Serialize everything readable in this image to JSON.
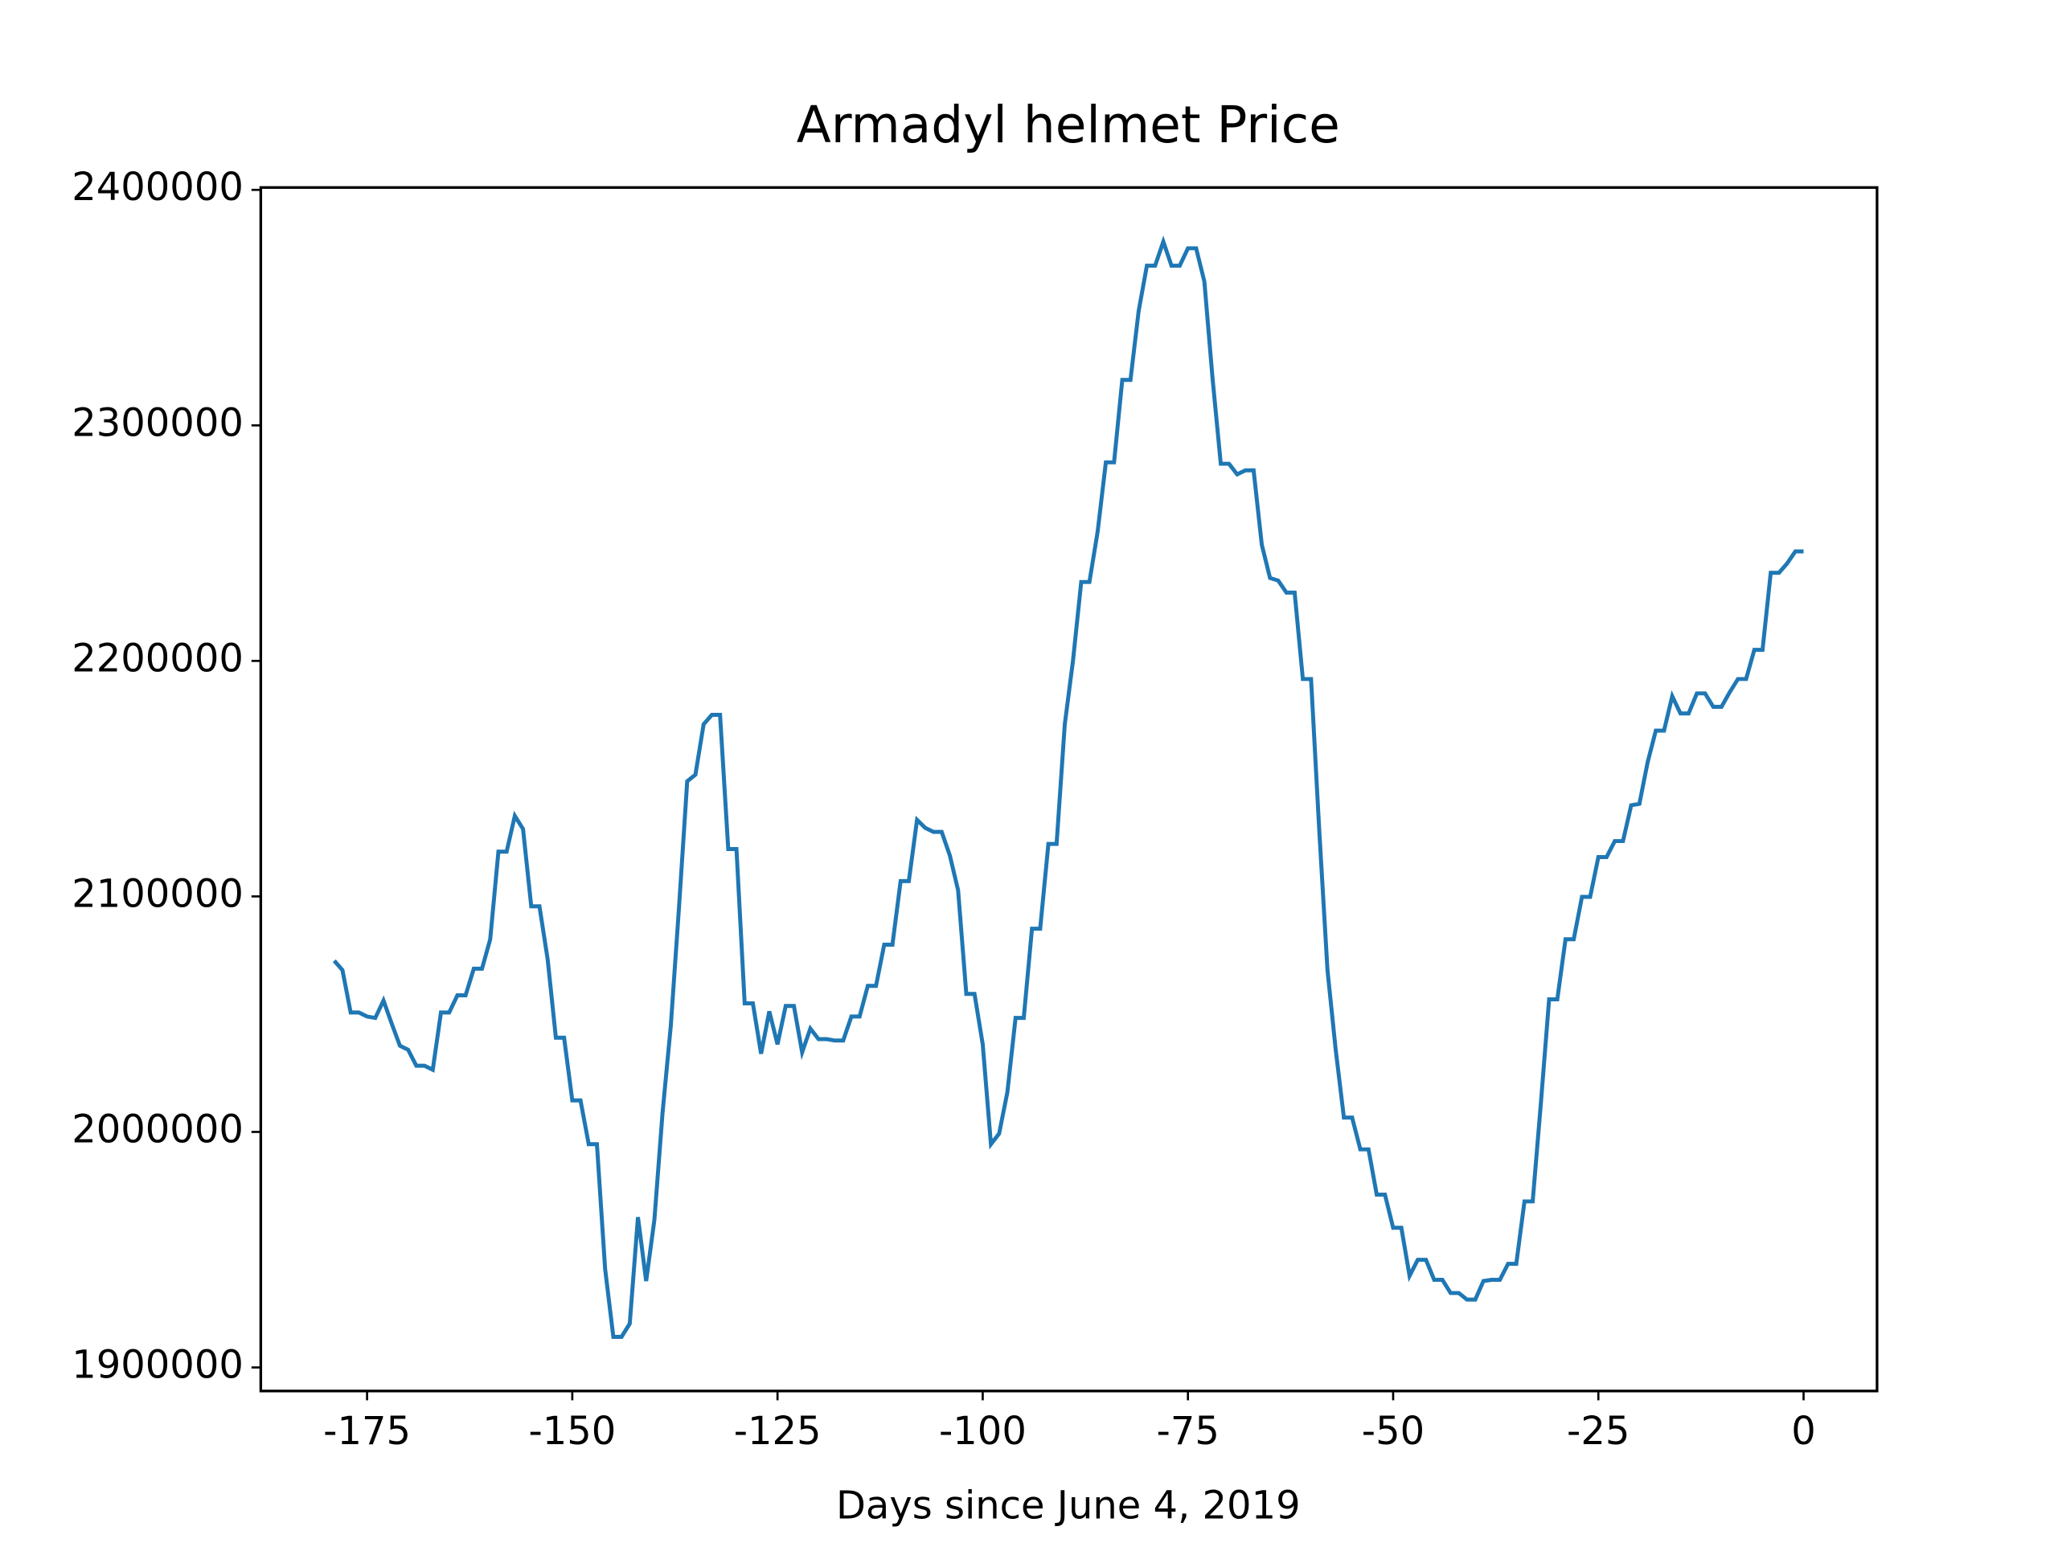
{
  "chart_data": {
    "type": "line",
    "title": "Armadyl helmet Price",
    "xlabel": "Days since June 4, 2019",
    "x": [
      -179,
      -178,
      -177,
      -176,
      -175,
      -174,
      -173,
      -172,
      -171,
      -170,
      -169,
      -168,
      -167,
      -166,
      -165,
      -164,
      -163,
      -162,
      -161,
      -160,
      -159,
      -158,
      -157,
      -156,
      -155,
      -154,
      -153,
      -152,
      -151,
      -150,
      -149,
      -148,
      -147,
      -146,
      -145,
      -144,
      -143,
      -142,
      -141,
      -140,
      -139,
      -138,
      -137,
      -136,
      -135,
      -134,
      -133,
      -132,
      -131,
      -130,
      -129,
      -128,
      -127,
      -126,
      -125,
      -124,
      -123,
      -122,
      -121,
      -120,
      -119,
      -118,
      -117,
      -116,
      -115,
      -114,
      -113,
      -112,
      -111,
      -110,
      -109,
      -108,
      -107,
      -106,
      -105,
      -104,
      -103,
      -102,
      -101,
      -100,
      -99,
      -98,
      -97,
      -96,
      -95,
      -94,
      -93,
      -92,
      -91,
      -90,
      -89,
      -88,
      -87,
      -86,
      -85,
      -84,
      -83,
      -82,
      -81,
      -80,
      -79,
      -78,
      -77,
      -76,
      -75,
      -74,
      -73,
      -72,
      -71,
      -70,
      -69,
      -68,
      -67,
      -66,
      -65,
      -64,
      -63,
      -62,
      -61,
      -60,
      -59,
      -58,
      -57,
      -56,
      -55,
      -54,
      -53,
      -52,
      -51,
      -50,
      -49,
      -48,
      -47,
      -46,
      -45,
      -44,
      -43,
      -42,
      -41,
      -40,
      -39,
      -38,
      -37,
      -36,
      -35,
      -34,
      -33,
      -32,
      -31,
      -30,
      -29,
      -28,
      -27,
      -26,
      -25,
      -24,
      -23,
      -22,
      -21,
      -20,
      -19,
      -18,
      -17,
      -16,
      -15,
      -14,
      -13,
      -12,
      -11,
      -10,
      -9,
      -8,
      -7,
      -6,
      -5,
      -4,
      -3,
      -2,
      -1,
      0
    ],
    "series": [
      {
        "color": "#1f77b4",
        "values": [
          2072700,
          2068700,
          2050700,
          2050700,
          2049000,
          2048400,
          2055800,
          2046000,
          2036600,
          2034900,
          2028100,
          2028100,
          2026400,
          2050700,
          2050700,
          2058000,
          2058000,
          2069300,
          2069300,
          2081800,
          2119000,
          2119000,
          2134200,
          2128600,
          2095800,
          2095800,
          2073300,
          2040000,
          2040000,
          2013400,
          2013400,
          1994800,
          1994800,
          1941800,
          1913000,
          1913000,
          1918600,
          1963800,
          1936700,
          1962600,
          2008300,
          2045000,
          2095300,
          2148900,
          2151700,
          2173100,
          2177100,
          2177100,
          2120100,
          2120100,
          2054600,
          2054600,
          2033200,
          2051200,
          2037200,
          2053500,
          2053500,
          2033800,
          2043900,
          2039400,
          2039400,
          2038800,
          2038800,
          2049000,
          2049000,
          2062000,
          2062000,
          2079500,
          2079500,
          2106500,
          2106500,
          2132500,
          2129100,
          2127400,
          2127400,
          2117300,
          2102600,
          2058600,
          2058600,
          2037200,
          1994800,
          1999300,
          2016800,
          2048400,
          2048400,
          2086300,
          2086300,
          2122300,
          2122300,
          2173100,
          2200200,
          2233500,
          2233500,
          2254900,
          2284300,
          2284300,
          2319300,
          2319300,
          2348600,
          2367800,
          2367800,
          2378000,
          2367800,
          2367800,
          2375200,
          2375200,
          2361100,
          2319900,
          2283700,
          2283700,
          2279200,
          2280900,
          2280900,
          2249300,
          2235200,
          2234100,
          2229000,
          2229000,
          2192300,
          2192300,
          2128000,
          2068700,
          2034900,
          2006100,
          2006100,
          1992600,
          1992600,
          1973400,
          1973400,
          1959300,
          1959300,
          1938900,
          1945700,
          1945700,
          1937200,
          1937200,
          1931600,
          1931600,
          1928800,
          1928800,
          1936700,
          1937200,
          1937200,
          1944000,
          1944000,
          1970500,
          1970500,
          2012300,
          2056300,
          2056300,
          2081800,
          2081800,
          2099800,
          2099800,
          2116700,
          2116700,
          2123500,
          2123500,
          2138700,
          2139300,
          2156900,
          2170400,
          2170400,
          2185000,
          2177700,
          2177700,
          2186200,
          2186200,
          2180500,
          2180500,
          2186700,
          2192300,
          2192300,
          2204700,
          2204700,
          2237400,
          2237400,
          2241400,
          2246500,
          2246500
        ]
      }
    ],
    "xlim": [
      -187.95,
      8.95
    ],
    "xticks": [
      -175,
      -150,
      -125,
      -100,
      -75,
      -50,
      -25,
      0
    ],
    "ylim": [
      1890000,
      2401000
    ],
    "yticks": [
      1900000,
      2000000,
      2100000,
      2200000,
      2300000,
      2400000
    ]
  }
}
